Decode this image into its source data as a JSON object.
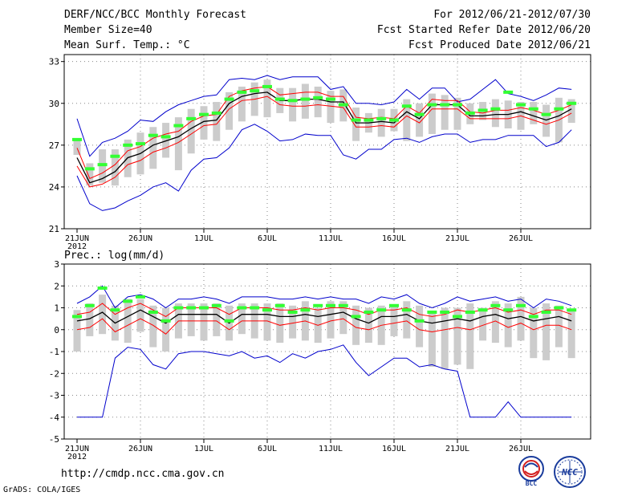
{
  "header": {
    "title": "DERF/NCC/BCC Monthly Forecast",
    "member_size": "Member Size=40",
    "variable": "Mean Surf. Temp.: °C",
    "period": "For 2012/06/21-2012/07/30",
    "refer_date": "Fcst Started Refer Date 2012/06/20",
    "produced_date": "Fcst Produced Date 2012/06/21"
  },
  "footer": {
    "url": "http://cmdp.ncc.cma.gov.cn",
    "grads_credit": "GrADS: COLA/IGES",
    "logo_bcc": "BCC",
    "logo_ncc": "NCC"
  },
  "colors": {
    "envelope": "#0000cc",
    "spread": "#ff0000",
    "mean": "#000000",
    "box": "#cccccc",
    "median": "#33ff33"
  },
  "chart_data": [
    {
      "type": "line",
      "title": "Mean Surf. Temp.: °C",
      "days": 40,
      "x_tick_labels": [
        "21JUN",
        "26JUN",
        "1JUL",
        "6JUL",
        "11JUL",
        "16JUL",
        "21JUL",
        "26JUL"
      ],
      "year_label": "2012",
      "ylim": [
        21,
        33.5
      ],
      "y_ticks": [
        21,
        24,
        27,
        30,
        33
      ],
      "y_tick_labels": [
        "21",
        "24",
        "27",
        "30",
        "33"
      ],
      "grid": true,
      "series": [
        {
          "name": "max",
          "values": [
            28.9,
            26.2,
            27.2,
            27.5,
            28.0,
            28.8,
            28.7,
            29.4,
            29.9,
            30.2,
            30.5,
            30.6,
            31.7,
            31.8,
            31.7,
            32.0,
            31.7,
            31.9,
            31.9,
            31.9,
            31.0,
            31.2,
            30.0,
            30.0,
            29.9,
            30.1,
            31.0,
            30.3,
            31.1,
            31.1,
            30.1,
            30.3,
            31.0,
            31.7,
            30.7,
            30.5,
            30.2,
            30.6,
            31.1,
            31.0
          ]
        },
        {
          "name": "min",
          "values": [
            24.8,
            22.8,
            22.3,
            22.5,
            23.0,
            23.4,
            24.0,
            24.3,
            23.7,
            25.2,
            26.0,
            26.1,
            26.8,
            28.1,
            28.5,
            28.0,
            27.3,
            27.4,
            27.8,
            27.7,
            27.7,
            26.3,
            26.0,
            26.7,
            26.7,
            27.4,
            27.5,
            27.2,
            27.6,
            27.8,
            27.8,
            27.2,
            27.4,
            27.4,
            27.7,
            27.7,
            27.7,
            26.9,
            27.2,
            28.1
          ]
        },
        {
          "name": "upper",
          "values": [
            26.8,
            24.6,
            25.0,
            25.6,
            26.6,
            26.9,
            27.5,
            27.8,
            28.0,
            28.7,
            29.1,
            29.2,
            30.5,
            30.9,
            31.1,
            31.2,
            30.6,
            30.7,
            30.8,
            30.8,
            30.5,
            30.5,
            29.0,
            28.9,
            29.0,
            28.9,
            29.8,
            29.3,
            30.3,
            30.2,
            30.2,
            29.4,
            29.3,
            29.5,
            29.5,
            29.7,
            29.5,
            29.2,
            29.5,
            29.9
          ]
        },
        {
          "name": "lower",
          "values": [
            25.5,
            24.0,
            24.2,
            24.7,
            25.6,
            25.9,
            26.5,
            26.8,
            27.2,
            27.8,
            28.4,
            28.5,
            29.6,
            30.2,
            30.3,
            30.5,
            29.9,
            29.8,
            29.8,
            29.9,
            29.8,
            29.7,
            28.3,
            28.3,
            28.4,
            28.3,
            29.1,
            28.6,
            29.6,
            29.6,
            29.6,
            28.9,
            28.9,
            28.9,
            28.9,
            29.1,
            28.8,
            28.5,
            28.8,
            29.3
          ]
        },
        {
          "name": "mean",
          "values": [
            26.1,
            24.3,
            24.6,
            25.1,
            26.1,
            26.4,
            27.0,
            27.3,
            27.6,
            28.2,
            28.7,
            28.8,
            30.0,
            30.5,
            30.7,
            30.8,
            30.2,
            30.2,
            30.3,
            30.3,
            30.1,
            30.1,
            28.6,
            28.6,
            28.7,
            28.6,
            29.4,
            28.9,
            29.9,
            29.9,
            29.9,
            29.1,
            29.1,
            29.2,
            29.2,
            29.4,
            29.1,
            28.8,
            29.1,
            29.6
          ]
        },
        {
          "name": "box_top",
          "values": [
            27.5,
            25.7,
            26.7,
            26.7,
            27.4,
            27.9,
            28.3,
            28.6,
            29.0,
            29.6,
            29.8,
            30.1,
            30.8,
            31.2,
            31.5,
            31.7,
            31.1,
            31.1,
            31.4,
            31.2,
            30.9,
            31.0,
            29.7,
            29.3,
            29.6,
            29.6,
            30.3,
            30.0,
            30.7,
            30.6,
            30.4,
            30.0,
            30.1,
            30.3,
            30.2,
            30.1,
            30.1,
            29.9,
            30.4,
            30.3
          ]
        },
        {
          "name": "box_bottom",
          "values": [
            26.3,
            24.1,
            24.3,
            24.1,
            24.7,
            24.9,
            25.3,
            26.1,
            25.2,
            26.4,
            27.4,
            27.3,
            28.1,
            28.7,
            29.1,
            29.0,
            29.3,
            28.7,
            28.9,
            29.0,
            28.6,
            28.7,
            27.3,
            27.9,
            27.6,
            28.0,
            27.3,
            27.6,
            27.8,
            28.1,
            28.1,
            28.5,
            28.8,
            28.3,
            28.2,
            28.1,
            28.5,
            27.6,
            27.2,
            28.6
          ]
        },
        {
          "name": "median",
          "values": [
            27.4,
            25.3,
            25.6,
            26.2,
            27.0,
            27.1,
            27.7,
            27.6,
            28.4,
            28.9,
            29.2,
            29.3,
            30.3,
            30.8,
            30.9,
            31.2,
            30.3,
            30.2,
            30.3,
            30.4,
            30.3,
            29.9,
            28.8,
            28.8,
            28.9,
            28.8,
            29.8,
            29.2,
            29.9,
            29.9,
            29.9,
            29.3,
            29.5,
            29.6,
            30.8,
            29.9,
            29.6,
            29.2,
            29.6,
            30.0
          ]
        }
      ]
    },
    {
      "type": "line",
      "title": "Prec.: log(mm/d)",
      "days": 40,
      "x_tick_labels": [
        "21JUN",
        "26JUN",
        "1JUL",
        "6JUL",
        "11JUL",
        "16JUL",
        "21JUL",
        "26JUL"
      ],
      "year_label": "2012",
      "ylim": [
        -5,
        3
      ],
      "y_ticks": [
        -5,
        -4,
        -3,
        -2,
        -1,
        0,
        1,
        2,
        3
      ],
      "y_tick_labels": [
        "-5",
        "-4",
        "-3",
        "-2",
        "-1",
        "0",
        "1",
        "2",
        "3"
      ],
      "grid": true,
      "series": [
        {
          "name": "max",
          "values": [
            1.2,
            1.5,
            2.0,
            1.0,
            1.5,
            1.6,
            1.4,
            1.0,
            1.4,
            1.4,
            1.5,
            1.4,
            1.2,
            1.5,
            1.5,
            1.5,
            1.4,
            1.4,
            1.5,
            1.4,
            1.5,
            1.4,
            1.4,
            1.2,
            1.5,
            1.4,
            1.6,
            1.2,
            1.0,
            1.2,
            1.5,
            1.3,
            1.4,
            1.5,
            1.3,
            1.4,
            1.0,
            1.4,
            1.3,
            1.1
          ]
        },
        {
          "name": "min",
          "values": [
            -4.0,
            -4.0,
            -4.0,
            -1.3,
            -0.8,
            -0.9,
            -1.6,
            -1.8,
            -1.1,
            -1.0,
            -1.0,
            -1.1,
            -1.2,
            -1.0,
            -1.3,
            -1.2,
            -1.5,
            -1.1,
            -1.3,
            -1.0,
            -0.9,
            -0.7,
            -1.5,
            -2.1,
            -1.7,
            -1.3,
            -1.3,
            -1.7,
            -1.6,
            -1.8,
            -1.9,
            -4.0,
            -4.0,
            -4.0,
            -3.3,
            -4.0,
            -4.0,
            -4.0,
            -4.0,
            -4.0
          ]
        },
        {
          "name": "upper",
          "values": [
            0.7,
            0.8,
            1.2,
            0.7,
            1.0,
            1.2,
            0.9,
            0.6,
            1.0,
            1.0,
            1.0,
            1.0,
            0.7,
            1.0,
            1.0,
            1.0,
            0.9,
            0.9,
            1.0,
            0.9,
            1.0,
            1.0,
            0.9,
            0.7,
            0.9,
            0.9,
            1.0,
            0.7,
            0.6,
            0.7,
            0.9,
            0.8,
            0.9,
            1.0,
            0.8,
            0.9,
            0.7,
            0.9,
            0.9,
            0.7
          ]
        },
        {
          "name": "lower",
          "values": [
            0.0,
            0.1,
            0.5,
            -0.1,
            0.2,
            0.5,
            0.2,
            -0.2,
            0.4,
            0.4,
            0.4,
            0.4,
            0.0,
            0.4,
            0.4,
            0.4,
            0.2,
            0.3,
            0.4,
            0.2,
            0.4,
            0.5,
            0.1,
            0.0,
            0.2,
            0.3,
            0.4,
            0.0,
            -0.1,
            0.0,
            0.1,
            0.0,
            0.2,
            0.4,
            0.1,
            0.3,
            0.0,
            0.2,
            0.2,
            0.0
          ]
        },
        {
          "name": "mean",
          "values": [
            0.4,
            0.5,
            0.8,
            0.3,
            0.6,
            0.9,
            0.6,
            0.3,
            0.7,
            0.7,
            0.7,
            0.7,
            0.3,
            0.7,
            0.7,
            0.7,
            0.6,
            0.6,
            0.7,
            0.6,
            0.7,
            0.8,
            0.5,
            0.3,
            0.6,
            0.6,
            0.7,
            0.4,
            0.3,
            0.4,
            0.5,
            0.4,
            0.6,
            0.7,
            0.5,
            0.6,
            0.4,
            0.5,
            0.6,
            0.4
          ]
        },
        {
          "name": "box_top",
          "values": [
            0.9,
            1.2,
            1.6,
            1.1,
            1.4,
            1.4,
            1.1,
            1.0,
            1.2,
            1.2,
            1.2,
            1.2,
            1.1,
            1.2,
            1.2,
            1.2,
            1.2,
            1.1,
            1.3,
            1.0,
            1.3,
            1.3,
            1.1,
            1.0,
            1.1,
            1.1,
            1.3,
            1.1,
            0.8,
            1.0,
            1.0,
            1.2,
            1.0,
            1.3,
            1.2,
            1.5,
            1.0,
            1.2,
            1.1,
            0.9
          ]
        },
        {
          "name": "box_bottom",
          "values": [
            -1.0,
            -0.3,
            -0.2,
            -0.5,
            -0.6,
            -0.1,
            -0.8,
            -1.0,
            -0.4,
            -0.3,
            -0.5,
            -0.3,
            -0.5,
            -0.2,
            -0.4,
            -0.5,
            -0.6,
            -0.4,
            -0.5,
            -0.6,
            -0.4,
            -0.2,
            -0.7,
            -0.6,
            -0.7,
            -0.3,
            -0.4,
            -0.8,
            -1.7,
            -1.8,
            -1.6,
            -1.8,
            -0.5,
            -0.6,
            -0.8,
            -0.5,
            -1.3,
            -1.4,
            -0.8,
            -1.3
          ]
        },
        {
          "name": "median",
          "values": [
            0.6,
            1.1,
            1.9,
            0.9,
            1.3,
            1.5,
            0.8,
            0.4,
            1.0,
            1.0,
            1.0,
            1.1,
            0.4,
            1.0,
            1.0,
            0.9,
            1.1,
            0.8,
            0.9,
            1.1,
            1.1,
            1.1,
            0.6,
            0.8,
            0.9,
            1.1,
            0.9,
            0.4,
            0.8,
            0.8,
            0.6,
            0.8,
            0.9,
            1.1,
            0.9,
            1.1,
            0.6,
            0.8,
            1.0,
            0.9
          ]
        }
      ]
    }
  ]
}
